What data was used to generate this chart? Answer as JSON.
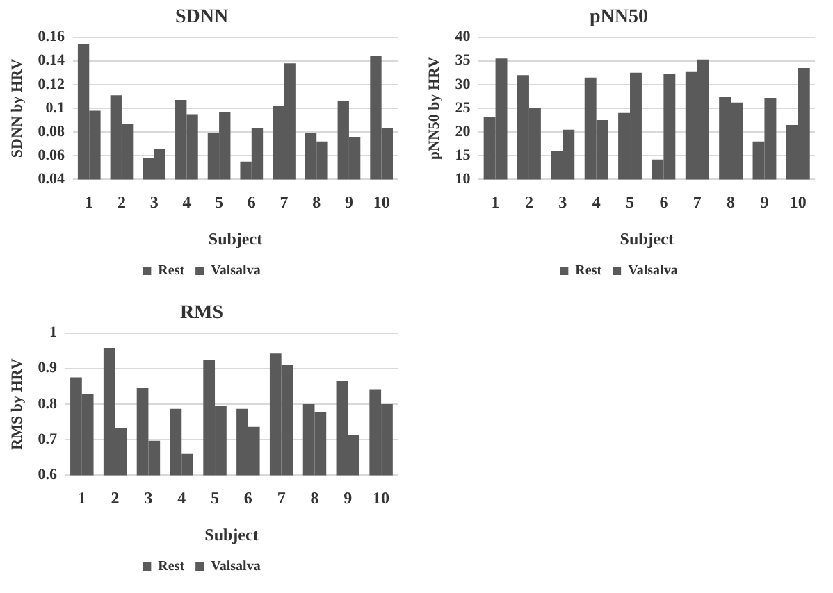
{
  "chart_data": [
    {
      "type": "bar",
      "title": "SDNN",
      "xlabel": "Subject",
      "ylabel": "SDNN by HRV",
      "categories": [
        "1",
        "2",
        "3",
        "4",
        "5",
        "6",
        "7",
        "8",
        "9",
        "10"
      ],
      "series": [
        {
          "name": "Rest",
          "color": "#5a5a5a",
          "values": [
            0.154,
            0.111,
            0.058,
            0.107,
            0.079,
            0.055,
            0.102,
            0.079,
            0.106,
            0.144
          ]
        },
        {
          "name": "Valsalva",
          "color": "#5a5a5a",
          "values": [
            0.098,
            0.087,
            0.066,
            0.095,
            0.097,
            0.083,
            0.138,
            0.072,
            0.076,
            0.083
          ]
        }
      ],
      "ylim": [
        0.04,
        0.16
      ],
      "yticks": [
        {
          "value": 0.04,
          "label": "0.04"
        },
        {
          "value": 0.06,
          "label": "0.06"
        },
        {
          "value": 0.08,
          "label": "0.08"
        },
        {
          "value": 0.1,
          "label": "0.1"
        },
        {
          "value": 0.12,
          "label": "0.12"
        },
        {
          "value": 0.14,
          "label": "0.14"
        },
        {
          "value": 0.16,
          "label": "0.16"
        }
      ],
      "grid": "y",
      "legend": "bottom"
    },
    {
      "type": "bar",
      "title": "pNN50",
      "xlabel": "Subject",
      "ylabel": "pNN50 by HRV",
      "categories": [
        "1",
        "2",
        "3",
        "4",
        "5",
        "6",
        "7",
        "8",
        "9",
        "10"
      ],
      "series": [
        {
          "name": "Rest",
          "color": "#5a5a5a",
          "values": [
            23.2,
            32,
            16,
            31.5,
            24,
            14.2,
            32.8,
            27.5,
            18,
            21.5
          ]
        },
        {
          "name": "Valsalva",
          "color": "#5a5a5a",
          "values": [
            35.5,
            25,
            20.5,
            22.5,
            32.5,
            32.2,
            35.3,
            26.2,
            27.2,
            33.5
          ]
        }
      ],
      "ylim": [
        10,
        40
      ],
      "yticks": [
        10,
        15,
        20,
        25,
        30,
        35,
        40
      ],
      "grid": "y",
      "legend": "bottom"
    },
    {
      "type": "bar",
      "title": "RMS",
      "xlabel": "Subject",
      "ylabel": "RMS by HRV",
      "categories": [
        "1",
        "2",
        "3",
        "4",
        "5",
        "6",
        "7",
        "8",
        "9",
        "10"
      ],
      "series": [
        {
          "name": "Rest",
          "color": "#5a5a5a",
          "values": [
            0.875,
            0.958,
            0.845,
            0.787,
            0.925,
            0.787,
            0.942,
            0.8,
            0.865,
            0.842
          ]
        },
        {
          "name": "Valsalva",
          "color": "#5a5a5a",
          "values": [
            0.828,
            0.733,
            0.697,
            0.66,
            0.795,
            0.736,
            0.91,
            0.778,
            0.713,
            0.8
          ]
        }
      ],
      "ylim": [
        0.6,
        1
      ],
      "yticks": [
        {
          "value": 0.6,
          "label": "0.6"
        },
        {
          "value": 0.7,
          "label": "0.7"
        },
        {
          "value": 0.8,
          "label": "0.8"
        },
        {
          "value": 0.9,
          "label": "0.9"
        },
        {
          "value": 1,
          "label": "1"
        }
      ],
      "grid": "y",
      "legend": "bottom"
    }
  ]
}
